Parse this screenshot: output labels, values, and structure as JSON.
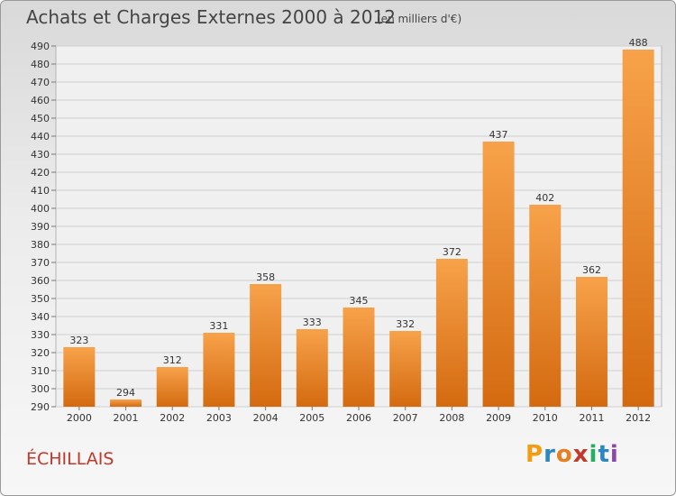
{
  "header": {
    "title": "Achats et Charges Externes 2000 à 2012",
    "unit": "(en milliers d'€)"
  },
  "footer": {
    "place": "ÉCHILLAIS",
    "brand": "Proxiti"
  },
  "colors": {
    "bar_light": "#f7a24a",
    "bar_dark": "#d46a10",
    "place": "#c0392b",
    "brand_letters": [
      "#f39c12",
      "#2e86c1",
      "#e67e22",
      "#c0392b",
      "#27ae60",
      "#2e86c1",
      "#8e44ad"
    ]
  },
  "chart_data": {
    "type": "bar",
    "title": "Achats et Charges Externes 2000 à 2012",
    "subtitle": "(en milliers d'€)",
    "categories": [
      "2000",
      "2001",
      "2002",
      "2003",
      "2004",
      "2005",
      "2006",
      "2007",
      "2008",
      "2009",
      "2010",
      "2011",
      "2012"
    ],
    "values": [
      323,
      294,
      312,
      331,
      358,
      333,
      345,
      332,
      372,
      437,
      402,
      362,
      488
    ],
    "ylim": [
      290,
      490
    ],
    "yticks": [
      290,
      300,
      310,
      320,
      330,
      340,
      350,
      360,
      370,
      380,
      390,
      400,
      410,
      420,
      430,
      440,
      450,
      460,
      470,
      480,
      490
    ],
    "grid": true,
    "legend": "none",
    "xlabel": "",
    "ylabel": ""
  }
}
